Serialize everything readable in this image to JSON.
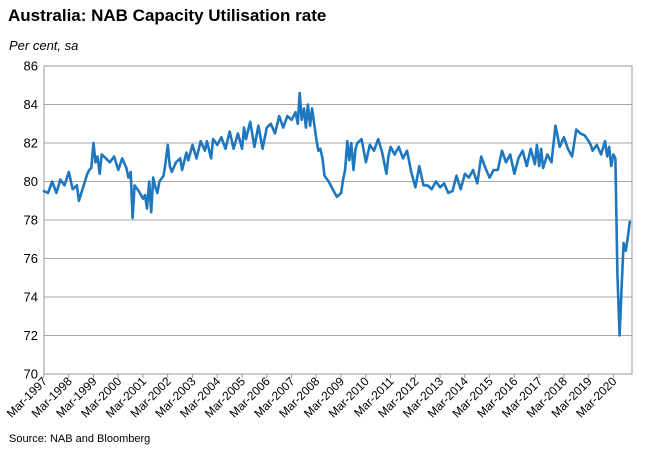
{
  "chart_data": {
    "type": "line",
    "title": "Australia: NAB Capacity Utilisation rate",
    "subtitle": "Per cent, sa",
    "source": "Source: NAB and Bloomberg",
    "ylim": [
      70,
      86
    ],
    "yticks": [
      "70",
      "72",
      "74",
      "76",
      "78",
      "80",
      "82",
      "84",
      "86"
    ],
    "xlim": [
      1997.17,
      2020.92
    ],
    "xticks": [
      "Mar-1997",
      "Mar-1998",
      "Mar-1999",
      "Mar-2000",
      "Mar-2001",
      "Mar-2002",
      "Mar-2003",
      "Mar-2004",
      "Mar-2005",
      "Mar-2006",
      "Mar-2007",
      "Mar-2008",
      "Mar-2009",
      "Mar-2010",
      "Mar-2011",
      "Mar-2012",
      "Mar-2013",
      "Mar-2014",
      "Mar-2015",
      "Mar-2016",
      "Mar-2017",
      "Mar-2018",
      "Mar-2019",
      "Mar-2020"
    ],
    "grid": true,
    "line_color": "#1f77bf",
    "series": [
      {
        "x": [
          1997.17,
          1997.33,
          1997.5,
          1997.67,
          1997.83,
          1998.0,
          1998.17,
          1998.33,
          1998.5,
          1998.58,
          1998.75,
          1998.92,
          1999.0,
          1999.08,
          1999.17,
          1999.25,
          1999.33,
          1999.42,
          1999.5,
          1999.67,
          1999.83,
          2000.0,
          2000.17,
          2000.33,
          2000.5,
          2000.58,
          2000.67,
          2000.75,
          2000.83,
          2001.0,
          2001.17,
          2001.25,
          2001.33,
          2001.42,
          2001.5,
          2001.58,
          2001.67,
          2001.75,
          2001.83,
          2002.0,
          2002.08,
          2002.17,
          2002.25,
          2002.33,
          2002.5,
          2002.67,
          2002.75,
          2002.92,
          2003.0,
          2003.17,
          2003.33,
          2003.5,
          2003.67,
          2003.75,
          2003.92,
          2004.0,
          2004.17,
          2004.33,
          2004.5,
          2004.67,
          2004.83,
          2005.0,
          2005.17,
          2005.25,
          2005.33,
          2005.5,
          2005.67,
          2005.83,
          2006.0,
          2006.17,
          2006.33,
          2006.5,
          2006.67,
          2006.83,
          2007.0,
          2007.17,
          2007.33,
          2007.42,
          2007.5,
          2007.58,
          2007.67,
          2007.75,
          2007.83,
          2007.92,
          2008.0,
          2008.17,
          2008.25,
          2008.33,
          2008.42,
          2008.5,
          2008.67,
          2008.83,
          2009.0,
          2009.08,
          2009.17,
          2009.25,
          2009.33,
          2009.42,
          2009.5,
          2009.58,
          2009.67,
          2009.75,
          2009.83,
          2010.0,
          2010.17,
          2010.33,
          2010.5,
          2010.67,
          2010.83,
          2011.0,
          2011.08,
          2011.17,
          2011.33,
          2011.5,
          2011.67,
          2011.83,
          2012.0,
          2012.17,
          2012.33,
          2012.5,
          2012.67,
          2012.83,
          2013.0,
          2013.17,
          2013.33,
          2013.5,
          2013.67,
          2013.83,
          2014.0,
          2014.17,
          2014.33,
          2014.5,
          2014.67,
          2014.83,
          2015.0,
          2015.17,
          2015.33,
          2015.5,
          2015.67,
          2015.83,
          2016.0,
          2016.17,
          2016.33,
          2016.5,
          2016.67,
          2016.83,
          2017.0,
          2017.08,
          2017.17,
          2017.25,
          2017.33,
          2017.5,
          2017.67,
          2017.83,
          2018.0,
          2018.17,
          2018.33,
          2018.5,
          2018.67,
          2018.83,
          2019.0,
          2019.17,
          2019.25,
          2019.33,
          2019.5,
          2019.67,
          2019.83,
          2019.92,
          2020.0,
          2020.08,
          2020.17,
          2020.25,
          2020.33,
          2020.42,
          2020.5,
          2020.58,
          2020.67,
          2020.75,
          2020.83
        ],
        "values": [
          79.5,
          79.4,
          80.0,
          79.4,
          80.1,
          79.8,
          80.5,
          79.6,
          79.8,
          79.0,
          79.7,
          80.4,
          80.6,
          80.7,
          82.0,
          81.0,
          81.3,
          80.4,
          81.4,
          81.2,
          81.0,
          81.3,
          80.6,
          81.2,
          80.7,
          80.2,
          80.5,
          78.1,
          79.8,
          79.5,
          79.1,
          79.3,
          78.6,
          80.0,
          78.4,
          80.2,
          79.7,
          79.4,
          80.0,
          80.3,
          81.0,
          81.9,
          80.8,
          80.5,
          81.0,
          81.2,
          80.6,
          81.5,
          81.1,
          81.9,
          81.2,
          82.1,
          81.6,
          82.1,
          81.2,
          82.2,
          81.9,
          82.3,
          81.7,
          82.6,
          81.7,
          82.5,
          81.7,
          82.8,
          82.2,
          83.1,
          81.8,
          82.9,
          81.7,
          82.8,
          83.0,
          82.5,
          83.4,
          82.8,
          83.4,
          83.2,
          83.6,
          83.0,
          84.6,
          83.2,
          83.8,
          82.8,
          84.0,
          82.9,
          83.8,
          82.2,
          81.6,
          81.7,
          81.2,
          80.3,
          80.0,
          79.6,
          79.2,
          79.3,
          79.4,
          80.1,
          80.6,
          82.1,
          81.1,
          82.0,
          80.6,
          81.7,
          82.0,
          82.2,
          81.0,
          81.9,
          81.6,
          82.2,
          81.5,
          80.4,
          81.3,
          81.8,
          81.4,
          81.8,
          81.2,
          81.6,
          80.5,
          79.7,
          80.8,
          79.8,
          79.8,
          79.6,
          80.0,
          79.7,
          79.9,
          79.4,
          79.5,
          80.3,
          79.6,
          80.4,
          80.2,
          80.6,
          79.9,
          81.3,
          80.7,
          80.2,
          80.6,
          80.6,
          81.6,
          81.0,
          81.4,
          80.4,
          81.2,
          81.6,
          80.8,
          81.7,
          80.9,
          81.9,
          80.8,
          81.7,
          80.7,
          81.4,
          81.0,
          82.9,
          81.8,
          82.3,
          81.7,
          81.3,
          82.7,
          82.5,
          82.4,
          82.1,
          81.9,
          81.6,
          81.9,
          81.4,
          82.1,
          81.3,
          81.8,
          80.8,
          81.4,
          81.2,
          75.2,
          72.0,
          74.5,
          76.8,
          76.4,
          77.1,
          77.9
        ]
      }
    ]
  }
}
